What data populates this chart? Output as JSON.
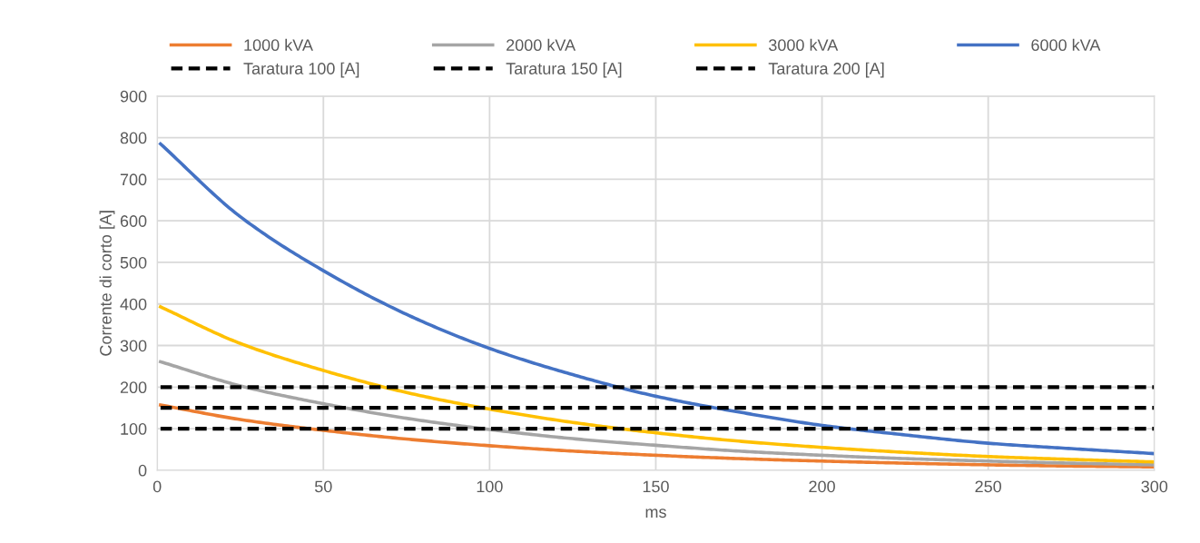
{
  "chart_data": {
    "type": "line",
    "xlabel": "ms",
    "ylabel": "Corrente di corto [A]",
    "x": [
      1,
      25,
      50,
      75,
      100,
      125,
      150,
      175,
      200,
      225,
      250,
      275,
      300
    ],
    "series": [
      {
        "name": "1000 kVA",
        "color": "#ed7d31",
        "values": [
          157,
          122,
          96,
          75,
          59,
          46,
          36,
          28,
          22,
          17,
          13,
          10,
          8
        ]
      },
      {
        "name": "2000 kVA",
        "color": "#a5a5a5",
        "values": [
          261,
          203,
          160,
          125,
          98,
          76,
          60,
          46,
          36,
          28,
          22,
          17,
          13
        ]
      },
      {
        "name": "3000 kVA",
        "color": "#ffc000",
        "values": [
          393,
          305,
          240,
          187,
          147,
          115,
          90,
          70,
          55,
          43,
          33,
          26,
          20
        ]
      },
      {
        "name": "6000 kVA",
        "color": "#4472c4",
        "values": [
          785,
          610,
          480,
          375,
          293,
          230,
          178,
          140,
          108,
          85,
          65,
          52,
          40
        ]
      },
      {
        "name": "Taratura 100 [A]",
        "color": "#000000",
        "line_style": "dashed",
        "values": [
          100,
          100,
          100,
          100,
          100,
          100,
          100,
          100,
          100,
          100,
          100,
          100,
          100
        ]
      },
      {
        "name": "Taratura 150 [A]",
        "color": "#000000",
        "line_style": "dashed",
        "values": [
          150,
          150,
          150,
          150,
          150,
          150,
          150,
          150,
          150,
          150,
          150,
          150,
          150
        ]
      },
      {
        "name": "Taratura 200 [A]",
        "color": "#000000",
        "line_style": "dashed",
        "values": [
          200,
          200,
          200,
          200,
          200,
          200,
          200,
          200,
          200,
          200,
          200,
          200,
          200
        ]
      }
    ],
    "xlim": [
      0,
      300
    ],
    "xticks": [
      0,
      50,
      100,
      150,
      200,
      250,
      300
    ],
    "ylim": [
      0,
      900
    ],
    "yticks": [
      0,
      100,
      200,
      300,
      400,
      500,
      600,
      700,
      800,
      900
    ],
    "grid": true,
    "legend": "top",
    "marker": "none",
    "line_style": "solid"
  }
}
